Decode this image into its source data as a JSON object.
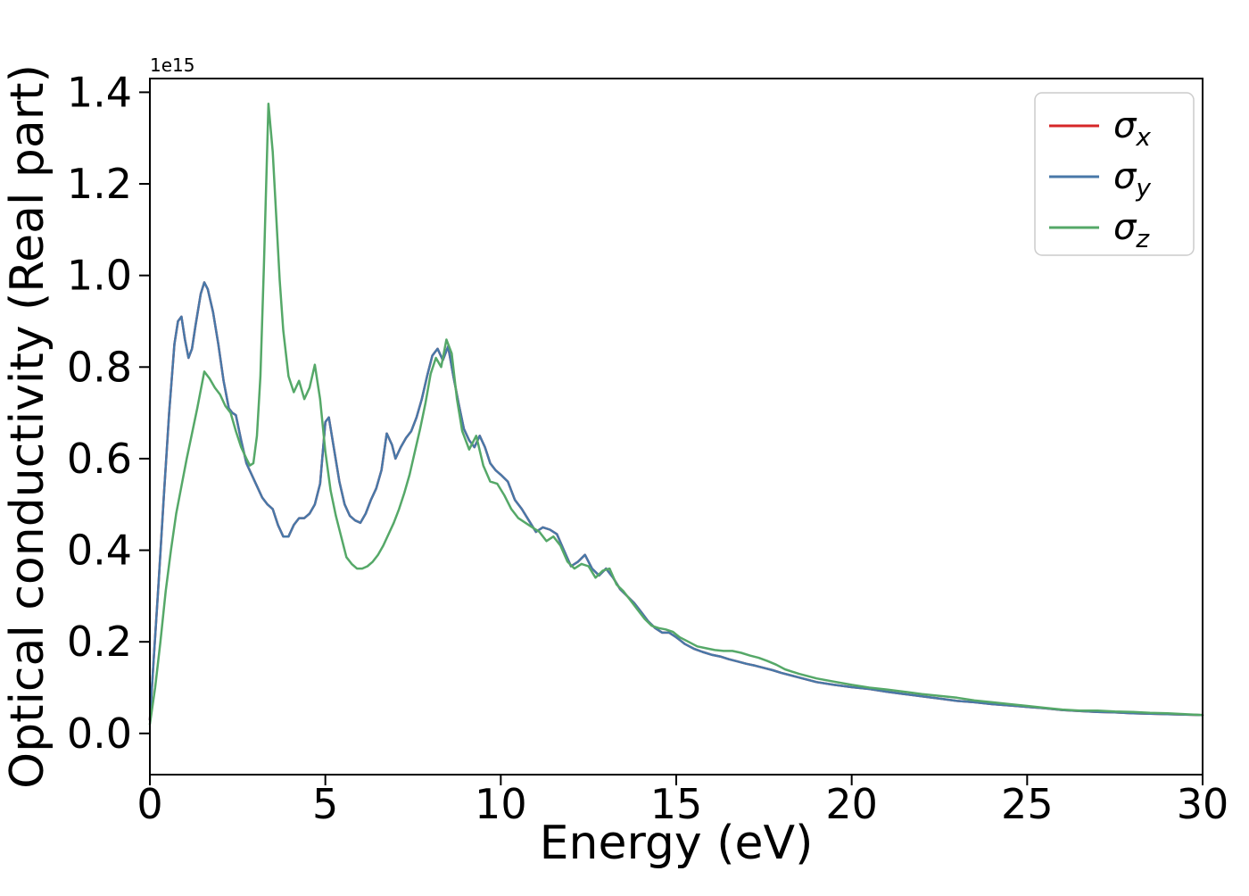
{
  "figure": {
    "background": "#ffffff"
  },
  "chart_data": {
    "type": "line",
    "title": "",
    "xlabel": "Energy (eV)",
    "ylabel": "Optical conductivity (Real part)",
    "offset_text": "1e15",
    "y_units_multiplier": "1e15",
    "xlim": [
      0,
      30
    ],
    "ylim": [
      -0.09,
      1.43
    ],
    "grid": false,
    "xticks": [
      {
        "v": 0,
        "label": "0"
      },
      {
        "v": 5,
        "label": "5"
      },
      {
        "v": 10,
        "label": "10"
      },
      {
        "v": 15,
        "label": "15"
      },
      {
        "v": 20,
        "label": "20"
      },
      {
        "v": 25,
        "label": "25"
      },
      {
        "v": 30,
        "label": "30"
      }
    ],
    "yticks": [
      {
        "v": 0.0,
        "label": "0.0"
      },
      {
        "v": 0.2,
        "label": "0.2"
      },
      {
        "v": 0.4,
        "label": "0.4"
      },
      {
        "v": 0.6,
        "label": "0.6"
      },
      {
        "v": 0.8,
        "label": "0.8"
      },
      {
        "v": 1.0,
        "label": "1.0"
      },
      {
        "v": 1.2,
        "label": "1.2"
      },
      {
        "v": 1.4,
        "label": "1.4"
      }
    ],
    "legend": {
      "position": "upper right",
      "entries": [
        {
          "name": "sigma-x",
          "base": "σ",
          "sub": "x",
          "color": "#d62728"
        },
        {
          "name": "sigma-y",
          "base": "σ",
          "sub": "y",
          "color": "#4878a8"
        },
        {
          "name": "sigma-z",
          "base": "σ",
          "sub": "z",
          "color": "#55a868"
        }
      ]
    },
    "series": [
      {
        "name": "sigma-x",
        "color": "#d62728",
        "x": [
          0,
          0.1,
          0.25,
          0.4,
          0.55,
          0.7,
          0.8,
          0.9,
          1.0,
          1.1,
          1.2,
          1.3,
          1.45,
          1.55,
          1.65,
          1.8,
          1.95,
          2.1,
          2.25,
          2.35,
          2.45,
          2.6,
          2.75,
          2.9,
          3.05,
          3.2,
          3.35,
          3.5,
          3.65,
          3.8,
          3.95,
          4.1,
          4.25,
          4.4,
          4.55,
          4.7,
          4.85,
          5.0,
          5.1,
          5.25,
          5.4,
          5.55,
          5.7,
          5.85,
          6.0,
          6.15,
          6.3,
          6.45,
          6.6,
          6.75,
          6.9,
          7.0,
          7.15,
          7.3,
          7.45,
          7.6,
          7.75,
          7.9,
          8.05,
          8.2,
          8.35,
          8.5,
          8.65,
          8.8,
          8.95,
          9.1,
          9.25,
          9.4,
          9.55,
          9.7,
          9.85,
          10.0,
          10.2,
          10.4,
          10.6,
          10.8,
          11.0,
          11.2,
          11.4,
          11.6,
          11.8,
          12.0,
          12.2,
          12.4,
          12.6,
          12.8,
          13.0,
          13.2,
          13.4,
          13.6,
          13.8,
          14.0,
          14.2,
          14.4,
          14.6,
          14.8,
          15.0,
          15.25,
          15.5,
          15.75,
          16.0,
          16.25,
          16.5,
          16.75,
          17.0,
          17.25,
          17.5,
          17.75,
          18.0,
          18.5,
          19.0,
          19.5,
          20.0,
          20.5,
          21.0,
          21.5,
          22.0,
          22.5,
          23.0,
          23.5,
          24.0,
          24.5,
          25.0,
          25.5,
          26.0,
          26.5,
          27.0,
          27.5,
          28.0,
          28.5,
          29.0,
          29.5,
          30.0
        ],
        "y": [
          0.03,
          0.15,
          0.33,
          0.52,
          0.7,
          0.85,
          0.9,
          0.91,
          0.86,
          0.82,
          0.84,
          0.89,
          0.96,
          0.985,
          0.97,
          0.92,
          0.85,
          0.77,
          0.71,
          0.7,
          0.695,
          0.64,
          0.59,
          0.565,
          0.54,
          0.515,
          0.5,
          0.49,
          0.455,
          0.43,
          0.43,
          0.455,
          0.47,
          0.47,
          0.48,
          0.5,
          0.545,
          0.68,
          0.69,
          0.62,
          0.55,
          0.5,
          0.475,
          0.465,
          0.46,
          0.48,
          0.51,
          0.535,
          0.575,
          0.655,
          0.63,
          0.6,
          0.625,
          0.645,
          0.66,
          0.69,
          0.73,
          0.78,
          0.825,
          0.84,
          0.815,
          0.845,
          0.78,
          0.72,
          0.665,
          0.64,
          0.625,
          0.65,
          0.625,
          0.59,
          0.575,
          0.565,
          0.55,
          0.51,
          0.49,
          0.465,
          0.44,
          0.45,
          0.445,
          0.435,
          0.4,
          0.365,
          0.375,
          0.39,
          0.36,
          0.345,
          0.36,
          0.34,
          0.315,
          0.3,
          0.285,
          0.265,
          0.245,
          0.23,
          0.22,
          0.22,
          0.21,
          0.195,
          0.185,
          0.178,
          0.172,
          0.168,
          0.162,
          0.157,
          0.152,
          0.148,
          0.143,
          0.138,
          0.132,
          0.122,
          0.112,
          0.106,
          0.101,
          0.097,
          0.091,
          0.086,
          0.081,
          0.076,
          0.071,
          0.068,
          0.064,
          0.061,
          0.058,
          0.055,
          0.051,
          0.049,
          0.047,
          0.046,
          0.044,
          0.043,
          0.042,
          0.041,
          0.04
        ]
      },
      {
        "name": "sigma-y",
        "color": "#4878a8",
        "x": [
          0,
          0.1,
          0.25,
          0.4,
          0.55,
          0.7,
          0.8,
          0.9,
          1.0,
          1.1,
          1.2,
          1.3,
          1.45,
          1.55,
          1.65,
          1.8,
          1.95,
          2.1,
          2.25,
          2.35,
          2.45,
          2.6,
          2.75,
          2.9,
          3.05,
          3.2,
          3.35,
          3.5,
          3.65,
          3.8,
          3.95,
          4.1,
          4.25,
          4.4,
          4.55,
          4.7,
          4.85,
          5.0,
          5.1,
          5.25,
          5.4,
          5.55,
          5.7,
          5.85,
          6.0,
          6.15,
          6.3,
          6.45,
          6.6,
          6.75,
          6.9,
          7.0,
          7.15,
          7.3,
          7.45,
          7.6,
          7.75,
          7.9,
          8.05,
          8.2,
          8.35,
          8.5,
          8.65,
          8.8,
          8.95,
          9.1,
          9.25,
          9.4,
          9.55,
          9.7,
          9.85,
          10.0,
          10.2,
          10.4,
          10.6,
          10.8,
          11.0,
          11.2,
          11.4,
          11.6,
          11.8,
          12.0,
          12.2,
          12.4,
          12.6,
          12.8,
          13.0,
          13.2,
          13.4,
          13.6,
          13.8,
          14.0,
          14.2,
          14.4,
          14.6,
          14.8,
          15.0,
          15.25,
          15.5,
          15.75,
          16.0,
          16.25,
          16.5,
          16.75,
          17.0,
          17.25,
          17.5,
          17.75,
          18.0,
          18.5,
          19.0,
          19.5,
          20.0,
          20.5,
          21.0,
          21.5,
          22.0,
          22.5,
          23.0,
          23.5,
          24.0,
          24.5,
          25.0,
          25.5,
          26.0,
          26.5,
          27.0,
          27.5,
          28.0,
          28.5,
          29.0,
          29.5,
          30.0
        ],
        "y": [
          0.03,
          0.15,
          0.33,
          0.52,
          0.7,
          0.85,
          0.9,
          0.91,
          0.86,
          0.82,
          0.84,
          0.89,
          0.96,
          0.985,
          0.97,
          0.92,
          0.85,
          0.77,
          0.71,
          0.7,
          0.695,
          0.64,
          0.59,
          0.565,
          0.54,
          0.515,
          0.5,
          0.49,
          0.455,
          0.43,
          0.43,
          0.455,
          0.47,
          0.47,
          0.48,
          0.5,
          0.545,
          0.68,
          0.69,
          0.62,
          0.55,
          0.5,
          0.475,
          0.465,
          0.46,
          0.48,
          0.51,
          0.535,
          0.575,
          0.655,
          0.63,
          0.6,
          0.625,
          0.645,
          0.66,
          0.69,
          0.73,
          0.78,
          0.825,
          0.84,
          0.815,
          0.845,
          0.78,
          0.72,
          0.665,
          0.64,
          0.625,
          0.65,
          0.625,
          0.59,
          0.575,
          0.565,
          0.55,
          0.51,
          0.49,
          0.465,
          0.44,
          0.45,
          0.445,
          0.435,
          0.4,
          0.365,
          0.375,
          0.39,
          0.36,
          0.345,
          0.36,
          0.34,
          0.315,
          0.3,
          0.285,
          0.265,
          0.245,
          0.23,
          0.22,
          0.22,
          0.21,
          0.195,
          0.185,
          0.178,
          0.172,
          0.168,
          0.162,
          0.157,
          0.152,
          0.148,
          0.143,
          0.138,
          0.132,
          0.122,
          0.112,
          0.106,
          0.101,
          0.097,
          0.091,
          0.086,
          0.081,
          0.076,
          0.071,
          0.068,
          0.064,
          0.061,
          0.058,
          0.055,
          0.051,
          0.049,
          0.047,
          0.046,
          0.044,
          0.043,
          0.042,
          0.041,
          0.04
        ]
      },
      {
        "name": "sigma-z",
        "color": "#55a868",
        "x": [
          0,
          0.15,
          0.3,
          0.45,
          0.6,
          0.75,
          0.9,
          1.05,
          1.2,
          1.35,
          1.55,
          1.7,
          1.85,
          2.0,
          2.15,
          2.3,
          2.45,
          2.6,
          2.75,
          2.85,
          2.95,
          3.05,
          3.15,
          3.25,
          3.38,
          3.5,
          3.6,
          3.7,
          3.8,
          3.95,
          4.1,
          4.25,
          4.4,
          4.55,
          4.7,
          4.85,
          5.0,
          5.15,
          5.3,
          5.45,
          5.6,
          5.75,
          5.9,
          6.05,
          6.2,
          6.35,
          6.5,
          6.65,
          6.8,
          6.95,
          7.1,
          7.25,
          7.4,
          7.55,
          7.7,
          7.85,
          8.0,
          8.15,
          8.3,
          8.45,
          8.6,
          8.75,
          8.9,
          9.1,
          9.3,
          9.5,
          9.7,
          9.9,
          10.1,
          10.3,
          10.5,
          10.7,
          10.9,
          11.1,
          11.3,
          11.5,
          11.7,
          11.9,
          12.1,
          12.3,
          12.5,
          12.7,
          12.9,
          13.1,
          13.3,
          13.5,
          13.7,
          13.9,
          14.1,
          14.3,
          14.5,
          14.7,
          14.9,
          15.1,
          15.35,
          15.6,
          15.85,
          16.1,
          16.35,
          16.6,
          16.85,
          17.1,
          17.35,
          17.6,
          17.85,
          18.1,
          18.5,
          19.0,
          19.5,
          20.0,
          20.5,
          21.0,
          21.5,
          22.0,
          22.5,
          23.0,
          23.5,
          24.0,
          24.5,
          25.0,
          25.5,
          26.0,
          26.5,
          27.0,
          27.5,
          28.0,
          28.5,
          29.0,
          29.5,
          30.0
        ],
        "y": [
          0.02,
          0.1,
          0.2,
          0.31,
          0.4,
          0.48,
          0.54,
          0.6,
          0.655,
          0.71,
          0.79,
          0.775,
          0.755,
          0.74,
          0.715,
          0.7,
          0.66,
          0.625,
          0.6,
          0.585,
          0.59,
          0.65,
          0.78,
          1.02,
          1.375,
          1.27,
          1.13,
          0.99,
          0.88,
          0.78,
          0.745,
          0.77,
          0.73,
          0.755,
          0.805,
          0.73,
          0.615,
          0.53,
          0.475,
          0.43,
          0.385,
          0.37,
          0.36,
          0.36,
          0.365,
          0.375,
          0.39,
          0.41,
          0.435,
          0.46,
          0.49,
          0.525,
          0.565,
          0.615,
          0.665,
          0.72,
          0.785,
          0.82,
          0.8,
          0.86,
          0.83,
          0.73,
          0.66,
          0.62,
          0.65,
          0.585,
          0.55,
          0.545,
          0.52,
          0.49,
          0.47,
          0.46,
          0.45,
          0.44,
          0.42,
          0.43,
          0.41,
          0.375,
          0.36,
          0.37,
          0.365,
          0.34,
          0.355,
          0.36,
          0.325,
          0.31,
          0.29,
          0.27,
          0.25,
          0.235,
          0.23,
          0.227,
          0.222,
          0.21,
          0.2,
          0.19,
          0.186,
          0.182,
          0.18,
          0.18,
          0.176,
          0.17,
          0.165,
          0.158,
          0.15,
          0.14,
          0.13,
          0.12,
          0.113,
          0.106,
          0.1,
          0.096,
          0.091,
          0.086,
          0.082,
          0.078,
          0.072,
          0.068,
          0.064,
          0.06,
          0.056,
          0.052,
          0.05,
          0.05,
          0.048,
          0.047,
          0.045,
          0.044,
          0.042,
          0.04
        ]
      }
    ]
  }
}
